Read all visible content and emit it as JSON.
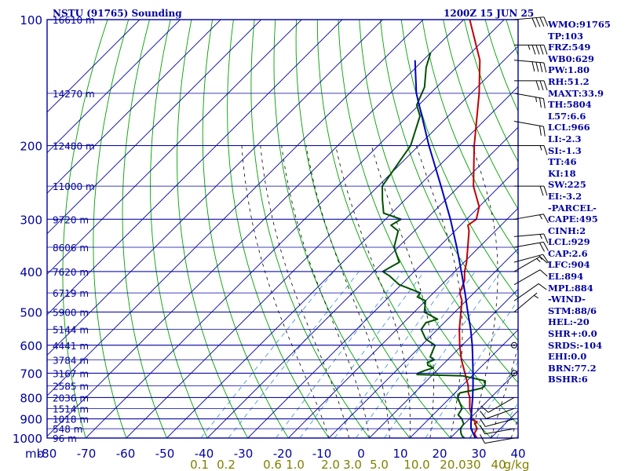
{
  "header": {
    "station": "NSTU (91765) Sounding",
    "time": "1200Z 15 JUN 25"
  },
  "indices": [
    "WMO:91765",
    "TP:103",
    "FRZ:549",
    "WB0:629",
    "PW:1.80",
    "RH:51.2",
    "MAXT:33.9",
    "TH:5804",
    "L57:6.6",
    "LCL:966",
    "LI:-2.3",
    "SI:-1.3",
    "TT:46",
    "KI:18",
    "SW:225",
    "EI:-3.2",
    "-PARCEL-",
    "CAPE:495",
    "CINH:2",
    "LCL:929",
    "CAP:2.6",
    "LFC:904",
    "EL:894",
    "MPL:884",
    "-WIND-",
    "STM:88/6",
    "HEL:-20",
    "SHR+:0.0",
    "SRDS:-104",
    "EHI:0.0",
    "BRN:77.2",
    "BSHR:6"
  ],
  "colors": {
    "frame": "#0000a0",
    "dry_adiabat": "#00a000",
    "moist_adiabat": "#000000",
    "mixing_ratio": "#3a8ad0",
    "temperature": "#c00000",
    "dewpoint": "#005000",
    "parcel": "#0000c0",
    "wind": "#000000",
    "mixing_label": "#808000"
  },
  "chart_data": {
    "type": "skew-t",
    "yscale": "log",
    "y_unit": "mb",
    "ylim": [
      1000,
      100
    ],
    "xlim": [
      -80,
      40
    ],
    "pressure_ticks": [
      "100",
      "200",
      "300",
      "400",
      "500",
      "600",
      "700",
      "800",
      "900",
      "1000"
    ],
    "pressure_tick_values": [
      100,
      200,
      300,
      400,
      500,
      600,
      700,
      800,
      900,
      1000
    ],
    "temperature_ticks": [
      "-80",
      "-70",
      "-60",
      "-50",
      "-40",
      "-30",
      "-20",
      "-10",
      "0",
      "10",
      "20",
      "30",
      "40"
    ],
    "temperature_tick_values": [
      -80,
      -70,
      -60,
      -50,
      -40,
      -30,
      -20,
      -10,
      0,
      10,
      20,
      30,
      40
    ],
    "x_unit": "mb",
    "mixing_ratio_ticks": [
      "0.1",
      "0.2",
      "0.6",
      "1.0",
      "2.0",
      "3.0",
      "5.0",
      "10.0",
      "20.0",
      "30",
      "40",
      "g/kg"
    ],
    "heights": [
      {
        "label": "16610 m",
        "p": 100
      },
      {
        "label": "14270 m",
        "p": 150
      },
      {
        "label": "12480 m",
        "p": 200
      },
      {
        "label": "11000 m",
        "p": 250
      },
      {
        "label": "9720 m",
        "p": 300
      },
      {
        "label": "8606 m",
        "p": 350
      },
      {
        "label": "7620 m",
        "p": 400
      },
      {
        "label": "6719 m",
        "p": 450
      },
      {
        "label": "5900 m",
        "p": 500
      },
      {
        "label": "5144 m",
        "p": 550
      },
      {
        "label": "4441 m",
        "p": 600
      },
      {
        "label": "3784 m",
        "p": 650
      },
      {
        "label": "3167 m",
        "p": 700
      },
      {
        "label": "2585 m",
        "p": 750
      },
      {
        "label": "2036 m",
        "p": 800
      },
      {
        "label": "1514 m",
        "p": 850
      },
      {
        "label": "1018 m",
        "p": 900
      },
      {
        "label": "548 m",
        "p": 950
      },
      {
        "label": "96 m",
        "p": 1000
      }
    ],
    "series": [
      {
        "key": "temperature",
        "points": [
          [
            1005,
            27.0
          ],
          [
            990,
            25.8
          ],
          [
            975,
            24.8
          ],
          [
            950,
            24.3
          ],
          [
            925,
            22.6
          ],
          [
            915,
            22.6
          ],
          [
            900,
            20.2
          ],
          [
            880,
            19.5
          ],
          [
            850,
            17.5
          ],
          [
            800,
            14.8
          ],
          [
            780,
            13.3
          ],
          [
            750,
            11.5
          ],
          [
            700,
            7.6
          ],
          [
            650,
            3.4
          ],
          [
            600,
            -0.6
          ],
          [
            550,
            -4.6
          ],
          [
            500,
            -8.5
          ],
          [
            470,
            -11.0
          ],
          [
            450,
            -13.5
          ],
          [
            420,
            -15.4
          ],
          [
            400,
            -17.6
          ],
          [
            380,
            -19.4
          ],
          [
            350,
            -22.8
          ],
          [
            320,
            -26.5
          ],
          [
            310,
            -28.2
          ],
          [
            300,
            -27.6
          ],
          [
            280,
            -30.0
          ],
          [
            250,
            -36.5
          ],
          [
            200,
            -46.3
          ],
          [
            150,
            -58.0
          ],
          [
            125,
            -66.0
          ],
          [
            100,
            -78.5
          ]
        ]
      },
      {
        "key": "dewpoint",
        "points": [
          [
            1005,
            24.0
          ],
          [
            990,
            22.5
          ],
          [
            975,
            21.5
          ],
          [
            950,
            20.2
          ],
          [
            925,
            19.8
          ],
          [
            900,
            18.1
          ],
          [
            880,
            16.2
          ],
          [
            850,
            15.6
          ],
          [
            800,
            11.8
          ],
          [
            780,
            11.2
          ],
          [
            770,
            13.5
          ],
          [
            760,
            15.4
          ],
          [
            750,
            15.6
          ],
          [
            730,
            14.5
          ],
          [
            710,
            7.6
          ],
          [
            705,
            -3.9
          ],
          [
            700,
            -4.0
          ],
          [
            690,
            -3.0
          ],
          [
            680,
            -1.5
          ],
          [
            670,
            -3.5
          ],
          [
            660,
            -4.3
          ],
          [
            650,
            -3.3
          ],
          [
            640,
            -5.0
          ],
          [
            600,
            -6.7
          ],
          [
            580,
            -10.5
          ],
          [
            550,
            -14.0
          ],
          [
            530,
            -14.5
          ],
          [
            520,
            -12.5
          ],
          [
            500,
            -17.5
          ],
          [
            470,
            -20.0
          ],
          [
            460,
            -23.0
          ],
          [
            450,
            -23.2
          ],
          [
            430,
            -30.5
          ],
          [
            410,
            -35.0
          ],
          [
            400,
            -37.8
          ],
          [
            380,
            -36.0
          ],
          [
            350,
            -41.0
          ],
          [
            320,
            -44.0
          ],
          [
            310,
            -47.2
          ],
          [
            300,
            -46.2
          ],
          [
            290,
            -52.0
          ],
          [
            270,
            -55.5
          ],
          [
            250,
            -59.0
          ],
          [
            200,
            -62.0
          ],
          [
            170,
            -67.0
          ],
          [
            160,
            -70.5
          ],
          [
            145,
            -73.0
          ],
          [
            130,
            -77.5
          ],
          [
            120,
            -80.0
          ]
        ]
      },
      {
        "key": "parcel",
        "points": [
          [
            1005,
            26.5
          ],
          [
            950,
            22.8
          ],
          [
            929,
            21.8
          ],
          [
            900,
            20.4
          ],
          [
            850,
            18.0
          ],
          [
            800,
            15.5
          ],
          [
            750,
            12.7
          ],
          [
            700,
            9.6
          ],
          [
            650,
            6.2
          ],
          [
            600,
            2.5
          ],
          [
            550,
            -1.8
          ],
          [
            500,
            -6.8
          ],
          [
            450,
            -12.2
          ],
          [
            400,
            -18.4
          ],
          [
            350,
            -25.5
          ],
          [
            300,
            -34.0
          ],
          [
            250,
            -44.5
          ],
          [
            200,
            -57.5
          ],
          [
            150,
            -73.5
          ],
          [
            125,
            -82.0
          ]
        ]
      }
    ],
    "mixing_ratio_labels_gkg": [
      0.1,
      0.2,
      0.6,
      1.0,
      2.0,
      3.0,
      5.0,
      10.0,
      20.0,
      30,
      40
    ],
    "wind_barbs": [
      {
        "p": 100,
        "dir": 85,
        "kt": 40
      },
      {
        "p": 115,
        "dir": 90,
        "kt": 45
      },
      {
        "p": 125,
        "dir": 95,
        "kt": 40
      },
      {
        "p": 140,
        "dir": 90,
        "kt": 30
      },
      {
        "p": 150,
        "dir": 100,
        "kt": 25
      },
      {
        "p": 175,
        "dir": 100,
        "kt": 20
      },
      {
        "p": 200,
        "dir": 90,
        "kt": 15
      },
      {
        "p": 250,
        "dir": 90,
        "kt": 20
      },
      {
        "p": 300,
        "dir": 80,
        "kt": 15
      },
      {
        "p": 330,
        "dir": 85,
        "kt": 15
      },
      {
        "p": 350,
        "dir": 80,
        "kt": 20
      },
      {
        "p": 380,
        "dir": 75,
        "kt": 15
      },
      {
        "p": 400,
        "dir": 60,
        "kt": 15
      },
      {
        "p": 430,
        "dir": 60,
        "kt": 10
      },
      {
        "p": 470,
        "dir": 55,
        "kt": 10
      },
      {
        "p": 500,
        "dir": 50,
        "kt": 5
      },
      {
        "p": 600,
        "dir": 0,
        "kt": 0
      },
      {
        "p": 700,
        "dir": 0,
        "kt": 0
      },
      {
        "p": 800,
        "dir": 240,
        "kt": 10
      },
      {
        "p": 850,
        "dir": 250,
        "kt": 10
      },
      {
        "p": 900,
        "dir": 255,
        "kt": 10
      },
      {
        "p": 950,
        "dir": 260,
        "kt": 10
      },
      {
        "p": 1000,
        "dir": 260,
        "kt": 10
      }
    ]
  }
}
